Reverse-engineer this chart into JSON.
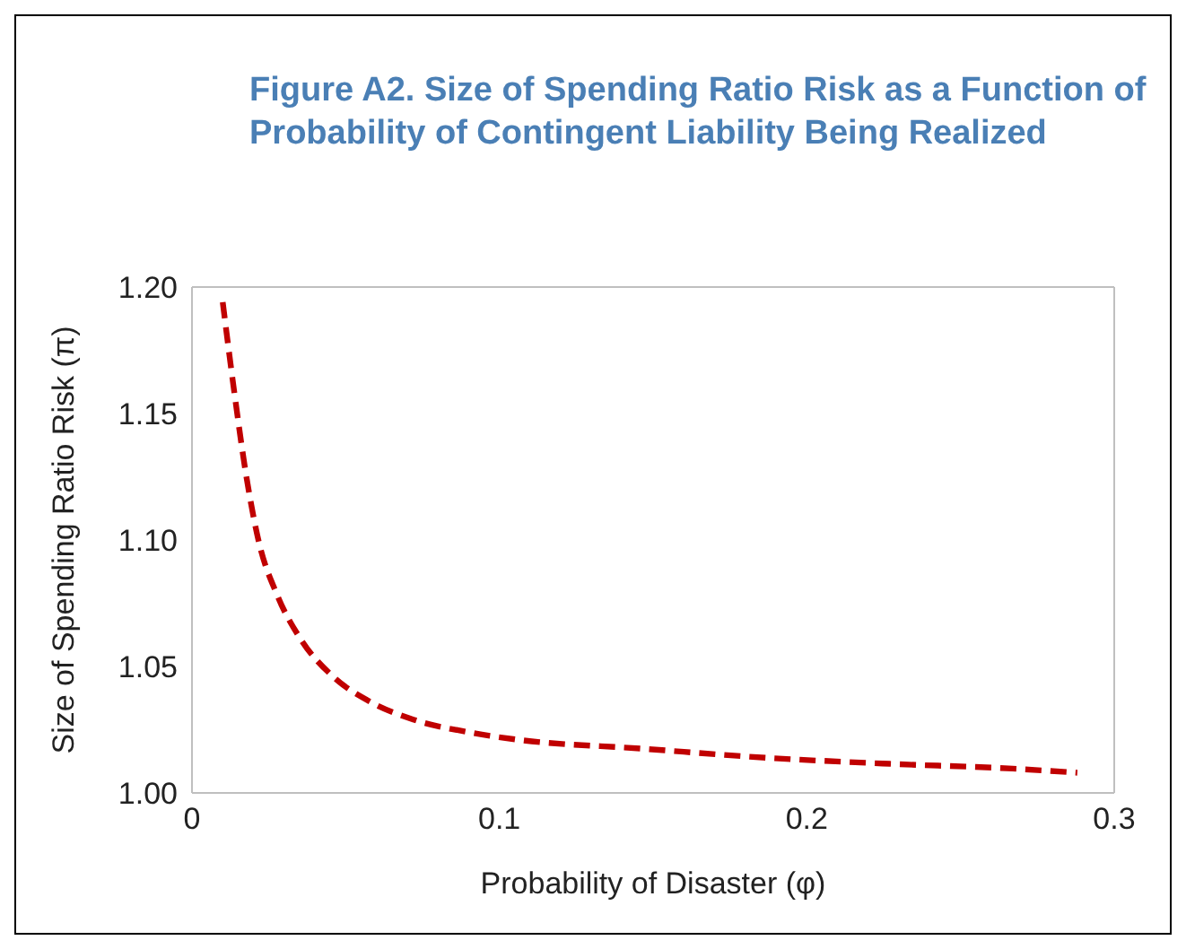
{
  "chart_data": {
    "type": "line",
    "title": "Figure A2. Size of Spending Ratio Risk as a Function of Probability of Contingent Liability Being Realized",
    "xlabel": "Probability of Disaster (φ)",
    "ylabel": "Size of Spending Ratio Risk (π)",
    "series": [
      {
        "color": "#c00000",
        "x": [
          0.01,
          0.0137,
          0.0177,
          0.0217,
          0.0278,
          0.0358,
          0.0459,
          0.058,
          0.072,
          0.09,
          0.1062,
          0.1465,
          0.1867,
          0.227,
          0.267,
          0.288
        ],
        "values": [
          1.194,
          1.159,
          1.125,
          1.0995,
          1.078,
          1.06,
          1.046,
          1.036,
          1.029,
          1.024,
          1.021,
          1.0175,
          1.0139,
          1.0115,
          1.0096,
          1.008
        ]
      }
    ],
    "xlim": [
      0,
      0.3
    ],
    "xticks": [
      0,
      0.1,
      0.2,
      0.3
    ],
    "ylim": [
      1.0,
      1.2
    ],
    "yticks": [
      {
        "value": 1.0,
        "label": "1.00"
      },
      {
        "value": 1.05,
        "label": "1.05"
      },
      {
        "value": 1.1,
        "label": "1.10"
      },
      {
        "value": 1.15,
        "label": "1.15"
      },
      {
        "value": 1.2,
        "label": "1.20"
      }
    ],
    "legend": false,
    "marker": "none",
    "line_style": "dashed"
  }
}
